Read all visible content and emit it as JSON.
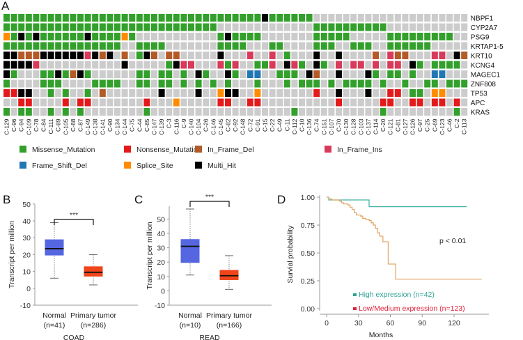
{
  "panel_labels": {
    "a": "A",
    "b": "B",
    "c": "C",
    "d": "D"
  },
  "colors": {
    "Missense_Mutation": "#33a02c",
    "Nonsense_Mutation": "#e31a1c",
    "In_Frame_Del": "#b35a26",
    "In_Frame_Ins": "#d73a5a",
    "Frame_Shift_Del": "#1f78b4",
    "Splice_Site": "#ff8c00",
    "Multi_Hit": "#000000",
    "none": "#cccccc",
    "normal_box": "#5566e0",
    "tumor_box": "#f0441a",
    "high_line": "#45b5a5",
    "low_line": "#e3a868",
    "high_legend": "#2fa394",
    "low_legend": "#e0223a"
  },
  "chart_data": [
    {
      "type": "heatmap",
      "title": "",
      "code_legend": {
        "G": "Missense_Mutation",
        "R": "Nonsense_Mutation",
        "B": "In_Frame_Del",
        "P": "In_Frame_Ins",
        "U": "Frame_Shift_Del",
        "O": "Splice_Site",
        "K": "Multi_Hit",
        ".": "none"
      },
      "samples": [
        "C-129",
        "C-96",
        "C-94",
        "C-109",
        "C-78",
        "C-84",
        "C-111",
        "C-89",
        "C-105",
        "C-88",
        "C-87",
        "C-149",
        "C-138",
        "C-141",
        "C-90",
        "C-134",
        "C-144",
        "C-75",
        "C-44",
        "C-85",
        "C-147",
        "C-139",
        "C-3",
        "C-116",
        "C-9",
        "C-140",
        "C-104",
        "C-26",
        "C-146",
        "C-145",
        "C-82",
        "C-92",
        "C-148",
        "C-72",
        "C-91",
        "C-15",
        "C-22",
        "C-49",
        "C-11",
        "C-112",
        "C-10",
        "C-136",
        "C-74",
        "C-151",
        "C-107",
        "C-70",
        "C-130",
        "C-128",
        "C-103",
        "C-137",
        "C-114",
        "C-20",
        "C-121",
        "C-81",
        "C-127",
        "C-126",
        "C-97",
        "C-25",
        "C-69",
        "C-123",
        "C-46",
        "C-2",
        "C-113"
      ],
      "genes": [
        {
          "name": "NBPF1",
          "cells": "GGGGGGGGGGGGGGGGGGGGGGGGGGGGGGGGGGGKGGGGGG....................."
        },
        {
          "name": "CYP2A7",
          "cells": "GGGGGGGGGGGGGGGGGGGGGGGGGGGGG.............GGGGGGGGGG..........."
        },
        {
          "name": "PSG9",
          "cells": "OGKGKGGGGGGKGGGGOG...........GKGGGG.......GGGGG.....GGGGGGGGG.."
        },
        {
          "name": "KRTAP1-5",
          "cells": "GGGGGGGGGGGGGGGG..GGGG.......GGGG...GG....GGG..GGG..GGGGGG....."
        },
        {
          "name": "KRT10",
          "cells": "KKBBBKKKKKKPKBK.B.GKB.BB.....K...P..P.G...K..K....B.PBB...PP.KB"
        },
        {
          "name": "KCNG4",
          "cells": "KKKKP...........K.....GKPP...PGP..GGP.KPG.KG.P.PP.P.PP.KG.GGGG."
        },
        {
          "name": "MAGEC1",
          "cells": "KG...GGKGBKG......GG.GG.G.KG..KG.UU..GGG.KB..K...KG.GG.G..UU..."
        },
        {
          "name": "ZNF808",
          "cells": "G....GGG....GGGG..GG.GG.G.G.G.G...G...G.GGG.G.GGGG.G..G..GG.GGG"
        },
        {
          "name": "TP53",
          "cells": "RRKK..G.G..G.B.......K....K..OKK..O.......R..K...K..RR.GG.OO..."
        },
        {
          "name": "APC",
          "cells": "..RR....R.RR.......R...O.....RR..RR..........R.....RR..RR.RR.R."
        },
        {
          "name": "KRAS",
          "cells": "G.GG..G.G.G........G...................G...........G.........G."
        }
      ],
      "legend": [
        "Missense_Mutation",
        "Nonsense_Mutation",
        "In_Frame_Del",
        "In_Frame_Ins",
        "Frame_Shift_Del",
        "Splice_Site",
        "Multi_Hit"
      ]
    },
    {
      "type": "box",
      "xlabel": "COAD",
      "ylabel": "Transcript per million",
      "ylim": [
        -10,
        50
      ],
      "yticks": [
        -10,
        0,
        10,
        20,
        30,
        40,
        50
      ],
      "significance": "***",
      "groups": [
        {
          "label": "Normal",
          "n_label": "(n=41)",
          "min": 6,
          "q1": 19.5,
          "median": 23.5,
          "q3": 29,
          "max": 39
        },
        {
          "label": "Primary tumor",
          "n_label": "(n=286)",
          "min": 2,
          "q1": 7,
          "median": 9.5,
          "q3": 13,
          "max": 20
        }
      ]
    },
    {
      "type": "box",
      "xlabel": "READ",
      "ylabel": "Transcript per million",
      "ylim": [
        -10,
        59
      ],
      "yticks": [
        -10,
        0,
        10,
        20,
        30,
        40,
        50
      ],
      "significance": "***",
      "groups": [
        {
          "label": "Normal",
          "n_label": "(n=10)",
          "min": 11,
          "q1": 19.5,
          "median": 31,
          "q3": 36,
          "max": 57
        },
        {
          "label": "Primary tumor",
          "n_label": "(n=166)",
          "min": 1,
          "q1": 7.5,
          "median": 10.5,
          "q3": 14.5,
          "max": 24.5
        }
      ]
    },
    {
      "type": "line",
      "xlabel": "Months",
      "ylabel": "Survial probability",
      "xlim": [
        0,
        150
      ],
      "ylim": [
        0,
        1
      ],
      "xticks": [
        0,
        30,
        60,
        90,
        120
      ],
      "yticks": [
        "0.00",
        "0.25",
        "0.50",
        "0.75",
        "1.00"
      ],
      "annotation": "p < 0.01",
      "series": [
        {
          "name": "High expression (n=42)",
          "steps": [
            [
              0,
              1
            ],
            [
              2,
              0.975
            ],
            [
              40,
              0.915
            ],
            [
              132,
              0.915
            ]
          ]
        },
        {
          "name": "Low/Medium expression (n=123)",
          "steps": [
            [
              0,
              1
            ],
            [
              2,
              0.985
            ],
            [
              5,
              0.975
            ],
            [
              12,
              0.965
            ],
            [
              14,
              0.95
            ],
            [
              16,
              0.94
            ],
            [
              20,
              0.93
            ],
            [
              22,
              0.91
            ],
            [
              24,
              0.89
            ],
            [
              26,
              0.86
            ],
            [
              28,
              0.84
            ],
            [
              32,
              0.83
            ],
            [
              34,
              0.81
            ],
            [
              37,
              0.8
            ],
            [
              40,
              0.79
            ],
            [
              42,
              0.77
            ],
            [
              44,
              0.75
            ],
            [
              46,
              0.72
            ],
            [
              48,
              0.68
            ],
            [
              50,
              0.65
            ],
            [
              53,
              0.6
            ],
            [
              58,
              0.4
            ],
            [
              65,
              0.265
            ],
            [
              146,
              0.265
            ]
          ]
        }
      ]
    }
  ]
}
